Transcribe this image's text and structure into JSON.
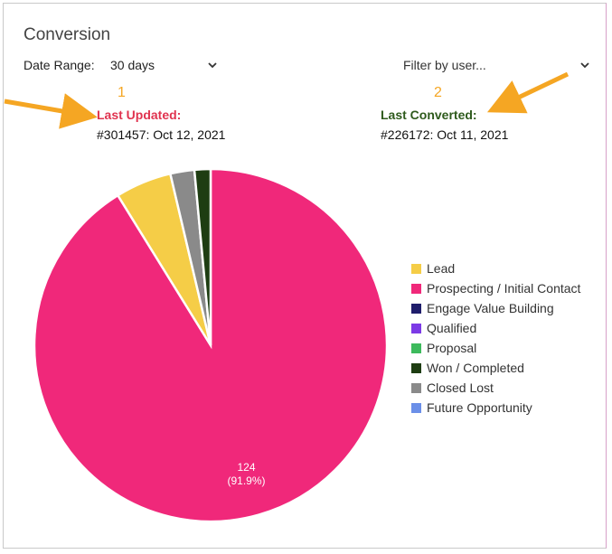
{
  "header": {
    "title": "Conversion"
  },
  "date_range": {
    "label": "Date Range:",
    "value": "30 days"
  },
  "filter": {
    "value": "Filter by user..."
  },
  "annotations": {
    "one": "1",
    "two": "2",
    "last_updated_label": "Last Updated:",
    "last_updated_value": "#301457: Oct 12, 2021",
    "last_converted_label": "Last Converted:",
    "last_converted_value": "#226172: Oct 11, 2021"
  },
  "colors": {
    "accent_arrow": "#f5a623"
  },
  "chart_data": {
    "type": "pie",
    "title": "",
    "slices": [
      {
        "name": "Lead",
        "value": 7,
        "color": "#f5cd47"
      },
      {
        "name": "Prospecting / Initial Contact",
        "value": 124,
        "color": "#f0287a",
        "label": "124",
        "sublabel": "(91.9%)"
      },
      {
        "name": "Engage Value Building",
        "value": 0,
        "color": "#1f1d6b"
      },
      {
        "name": "Qualified",
        "value": 0,
        "color": "#7c3ae6"
      },
      {
        "name": "Proposal",
        "value": 0,
        "color": "#3dba5c"
      },
      {
        "name": "Won / Completed",
        "value": 2,
        "color": "#1e3d12"
      },
      {
        "name": "Closed Lost",
        "value": 3,
        "color": "#8a8a8a"
      },
      {
        "name": "Future Opportunity",
        "value": 0,
        "color": "#6b8fe8"
      }
    ],
    "draw_order": [
      "Prospecting / Initial Contact",
      "Lead",
      "Closed Lost",
      "Won / Completed"
    ],
    "legend_position": "right"
  }
}
